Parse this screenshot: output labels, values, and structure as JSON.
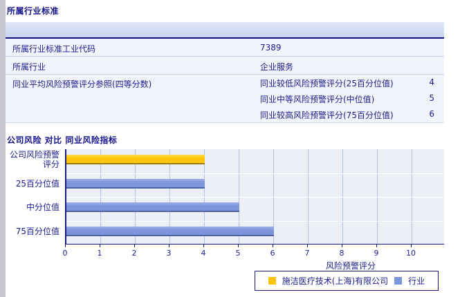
{
  "section1": {
    "title": "所属行业标准"
  },
  "table": {
    "rows": [
      {
        "label": "所属行业标准工业代码",
        "value": "7389"
      },
      {
        "label": "所属行业",
        "value": "企业服务"
      },
      {
        "label": "同业平均风险预警评分参照(四等分数)",
        "subrows": [
          {
            "label": "同业较低风险预警评分(25百分位值)",
            "value": "4"
          },
          {
            "label": "同业中等风险预警评分(中位值)",
            "value": "5"
          },
          {
            "label": "同业较高风险预警评分(75百分位值)",
            "value": "6"
          }
        ]
      }
    ]
  },
  "section2": {
    "title": "公司风险 对比 同业风险指标"
  },
  "chart_data": {
    "type": "bar",
    "orientation": "horizontal",
    "xlabel": "风险预警评分",
    "xlim": [
      0,
      10
    ],
    "xticks": [
      0,
      1,
      2,
      3,
      4,
      5,
      6,
      7,
      8,
      9,
      10
    ],
    "grid": "vertical",
    "legend_position": "bottom",
    "categories": [
      "公司风险预警评分",
      "25百分位值",
      "中分位值",
      "75百分位值"
    ],
    "bars": [
      {
        "category": "公司风险预警评分",
        "category_lines": [
          "公司风险预警",
          "评分"
        ],
        "value": 4,
        "series": "施洁医疗技术(上海)有限公司"
      },
      {
        "category": "25百分位值",
        "category_lines": [
          "25百分位值"
        ],
        "value": 4,
        "series": "行业"
      },
      {
        "category": "中分位值",
        "category_lines": [
          "中分位值"
        ],
        "value": 5,
        "series": "行业"
      },
      {
        "category": "75百分位值",
        "category_lines": [
          "75百分位值"
        ],
        "value": 6,
        "series": "行业"
      }
    ],
    "series": [
      {
        "name": "施洁医疗技术(上海)有限公司",
        "color": "#fdc50a",
        "color_light": "#ffd94f",
        "color_dark": "#9c7a06"
      },
      {
        "name": "行业",
        "color": "#7d96db",
        "color_light": "#9cafe7",
        "color_dark": "#4d62a4"
      }
    ]
  },
  "colors": {
    "text_navy": "#1b1b8f",
    "table_header_bg": "#c6d5ee",
    "table_row_bg": "#f1f4fa",
    "plot_bg": "#edeff6",
    "gridline": "#b3c2e2",
    "axis": "#1a1a7a",
    "left_strip": "#c6c7ce"
  }
}
